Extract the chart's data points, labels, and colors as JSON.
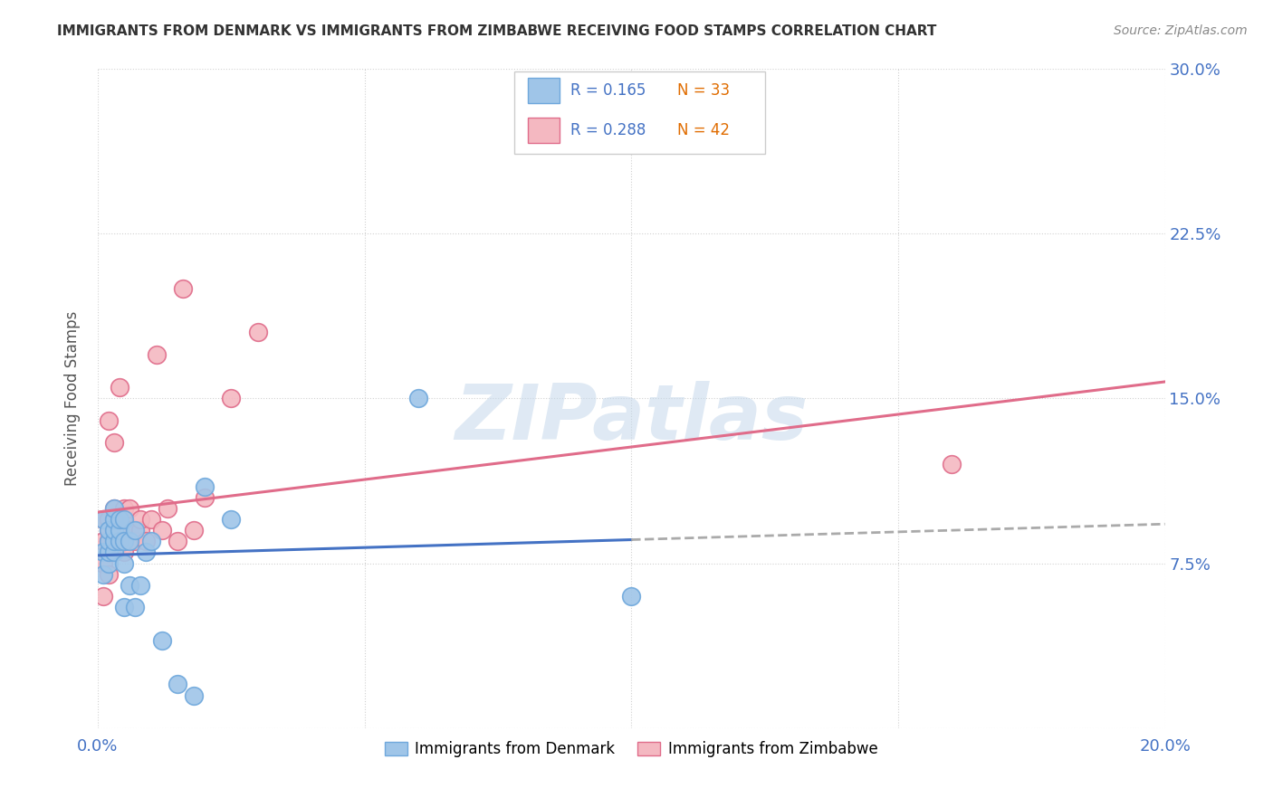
{
  "title": "IMMIGRANTS FROM DENMARK VS IMMIGRANTS FROM ZIMBABWE RECEIVING FOOD STAMPS CORRELATION CHART",
  "source": "Source: ZipAtlas.com",
  "ylabel": "Receiving Food Stamps",
  "xlim": [
    0.0,
    0.2
  ],
  "ylim": [
    0.0,
    0.3
  ],
  "denmark_color": "#9fc5e8",
  "zimbabwe_color": "#f4b8c1",
  "denmark_edge": "#6fa8dc",
  "zimbabwe_edge": "#e06c8a",
  "denmark_line_color": "#4472c4",
  "zimbabwe_line_color": "#e06c8a",
  "dash_color": "#aaaaaa",
  "denmark_R": 0.165,
  "denmark_N": 33,
  "zimbabwe_R": 0.288,
  "zimbabwe_N": 42,
  "watermark": "ZIPatlas",
  "denmark_x": [
    0.001,
    0.001,
    0.001,
    0.002,
    0.002,
    0.002,
    0.002,
    0.003,
    0.003,
    0.003,
    0.003,
    0.003,
    0.004,
    0.004,
    0.004,
    0.005,
    0.005,
    0.005,
    0.005,
    0.006,
    0.006,
    0.007,
    0.007,
    0.008,
    0.009,
    0.01,
    0.012,
    0.015,
    0.018,
    0.02,
    0.025,
    0.06,
    0.1
  ],
  "denmark_y": [
    0.07,
    0.08,
    0.095,
    0.075,
    0.08,
    0.085,
    0.09,
    0.08,
    0.085,
    0.09,
    0.095,
    0.1,
    0.085,
    0.09,
    0.095,
    0.055,
    0.075,
    0.085,
    0.095,
    0.065,
    0.085,
    0.055,
    0.09,
    0.065,
    0.08,
    0.085,
    0.04,
    0.02,
    0.015,
    0.11,
    0.095,
    0.15,
    0.06
  ],
  "zimbabwe_x": [
    0.001,
    0.001,
    0.001,
    0.001,
    0.002,
    0.002,
    0.002,
    0.002,
    0.002,
    0.002,
    0.003,
    0.003,
    0.003,
    0.003,
    0.003,
    0.003,
    0.004,
    0.004,
    0.004,
    0.004,
    0.005,
    0.005,
    0.005,
    0.005,
    0.005,
    0.006,
    0.006,
    0.007,
    0.008,
    0.008,
    0.009,
    0.01,
    0.011,
    0.012,
    0.013,
    0.015,
    0.016,
    0.018,
    0.02,
    0.025,
    0.03,
    0.16
  ],
  "zimbabwe_y": [
    0.06,
    0.075,
    0.085,
    0.095,
    0.07,
    0.08,
    0.085,
    0.09,
    0.095,
    0.14,
    0.08,
    0.085,
    0.09,
    0.095,
    0.1,
    0.13,
    0.085,
    0.09,
    0.095,
    0.155,
    0.08,
    0.085,
    0.09,
    0.095,
    0.1,
    0.09,
    0.1,
    0.085,
    0.09,
    0.095,
    0.085,
    0.095,
    0.17,
    0.09,
    0.1,
    0.085,
    0.2,
    0.09,
    0.105,
    0.15,
    0.18,
    0.12
  ]
}
